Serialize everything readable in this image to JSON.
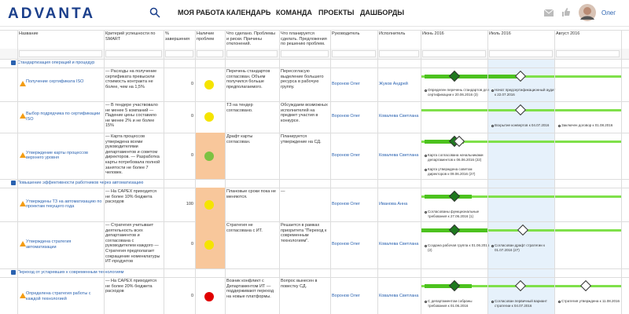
{
  "header": {
    "logo": "ADVANTA",
    "nav": [
      "МОЯ РАБОТА",
      "КАЛЕНДАРЬ",
      "КОМАНДА",
      "ПРОЕКТЫ",
      "ДАШБОРДЫ"
    ],
    "user": "Олег"
  },
  "table": {
    "columns": [
      "Название",
      "Критерий успешности по SMART",
      "% завершения",
      "Наличие проблем",
      "Что сделано. Проблемы и риски. Причины отклонений.",
      "Что планируется сделать. Предложения по решению проблем.",
      "Руководитель",
      "Исполнитель",
      "Июнь 2016",
      "Июль 2016",
      "Август 2016"
    ],
    "groups": [
      {
        "title": "Стандартизация операций и процедур",
        "rows": [
          {
            "name": "Получение сертификата ISO",
            "criteria": "— Расходы на получение сертификата превысили стоимость контракта не более, чем на 1,5%",
            "percent": 0,
            "status_color": "#f5e400",
            "flagged": false,
            "done": "Перечень стандартов согласован. Объем получился больше предполагаемого.",
            "plan": "Пересогласую выделение большего ресурса в рабочую группу.",
            "manager": "Воронов Олег",
            "executor": "Жуков Андрей",
            "milestones": [
              "Определен перечень стандартов для сертификации к 20.06.2016 (3)",
              "Начат предсертификационный аудит к 22.07.2016"
            ]
          },
          {
            "name": "Выбор подрядчика по сертификации ISO",
            "criteria": "— В тендере участвовало не менее 5 компаний — Падение цены составило не менее 2% и не более 15%",
            "percent": 0,
            "status_color": "#f5e400",
            "flagged": false,
            "done": "ТЗ на тендер согласовано.",
            "plan": "Обсуждаем возможных исполнителей на предмет участия в конкурсе.",
            "manager": "Воронов Олег",
            "executor": "Ковалева Светлана",
            "milestones": [
              "Вскрытие конвертов к 04.07.2016",
              "Заключен договор к 01.08.2016"
            ]
          },
          {
            "name": "Утверждение карты процессов верхнего уровня",
            "criteria": "— Карта процессов утверждена всеми руководителями департаментов и советом директоров. — Разработка карты потребовала полной занятости не более 7 человек.",
            "percent": 0,
            "status_color": "#7cc242",
            "flagged": true,
            "done": "Драфт карты согласован.",
            "plan": "Планируется утверждение на СД.",
            "manager": "Воронов Олег",
            "executor": "Ковалева Светлана",
            "milestones": [
              "Карта согласована начальниками департаментов к 06.06.2016 (22)",
              "Карта утверждена советом директоров к 09.06.2016 (27)"
            ]
          }
        ]
      },
      {
        "title": "Повышение эффективности работников через автоматизацию",
        "rows": [
          {
            "name": "Утверждены ТЗ на автоматизацию по проектам текущего года",
            "criteria": "— На CAPEX приходится не более 10% бюджета расходов",
            "percent": 100,
            "status_color": "#f5e400",
            "flagged": true,
            "done": "Плановые сроки пока не меняются.",
            "plan": "—",
            "manager": "Воронов Олег",
            "executor": "Иванова Анна",
            "milestones": [
              "Согласованы функциональные требования к 27.06.2016 (1)"
            ]
          },
          {
            "name": "Утверждена стратегия автоматизации",
            "criteria": "— Стратегия учитывает деятельность всех департаментов и согласована с руководителем каждого — Стратегия предполагает сокращение номенклатуры ИТ-продуктов",
            "percent": 0,
            "status_color": "#f5e400",
            "flagged": true,
            "done": "Стратегия не согласована с ИТ.",
            "plan": "Решается в рамках приоритета \"Переход к современным технологиям\".",
            "manager": "Воронов Олег",
            "executor": "Ковалева Светлана",
            "milestones": [
              "Создана рабочая группа к 01.06.2016 (2)",
              "Согласован драфт стратегии к 01.07.2016 (27)"
            ]
          }
        ]
      },
      {
        "title": "Переход от устаревших к современным технологиям",
        "rows": [
          {
            "name": "Определена стратегия работы с каждой технологией",
            "criteria": "— На CAPEX приходится не более 20% бюджета расходов",
            "percent": 0,
            "status_color": "#e00000",
            "flagged": false,
            "done": "Возник конфликт с Департаментом ИТ — поддерживают переход на новые платформы.",
            "plan": "Вопрос вынесен в повестку СД.",
            "manager": "Воронов Олег",
            "executor": "Ковалева Светлана",
            "milestones": [
              "С департаментом собраны требования к 01.06.2016",
              "Согласован первичный вариант стратегии к 04.07.2016",
              "Стратегия утверждена к 11.08.2016"
            ]
          }
        ]
      }
    ]
  }
}
